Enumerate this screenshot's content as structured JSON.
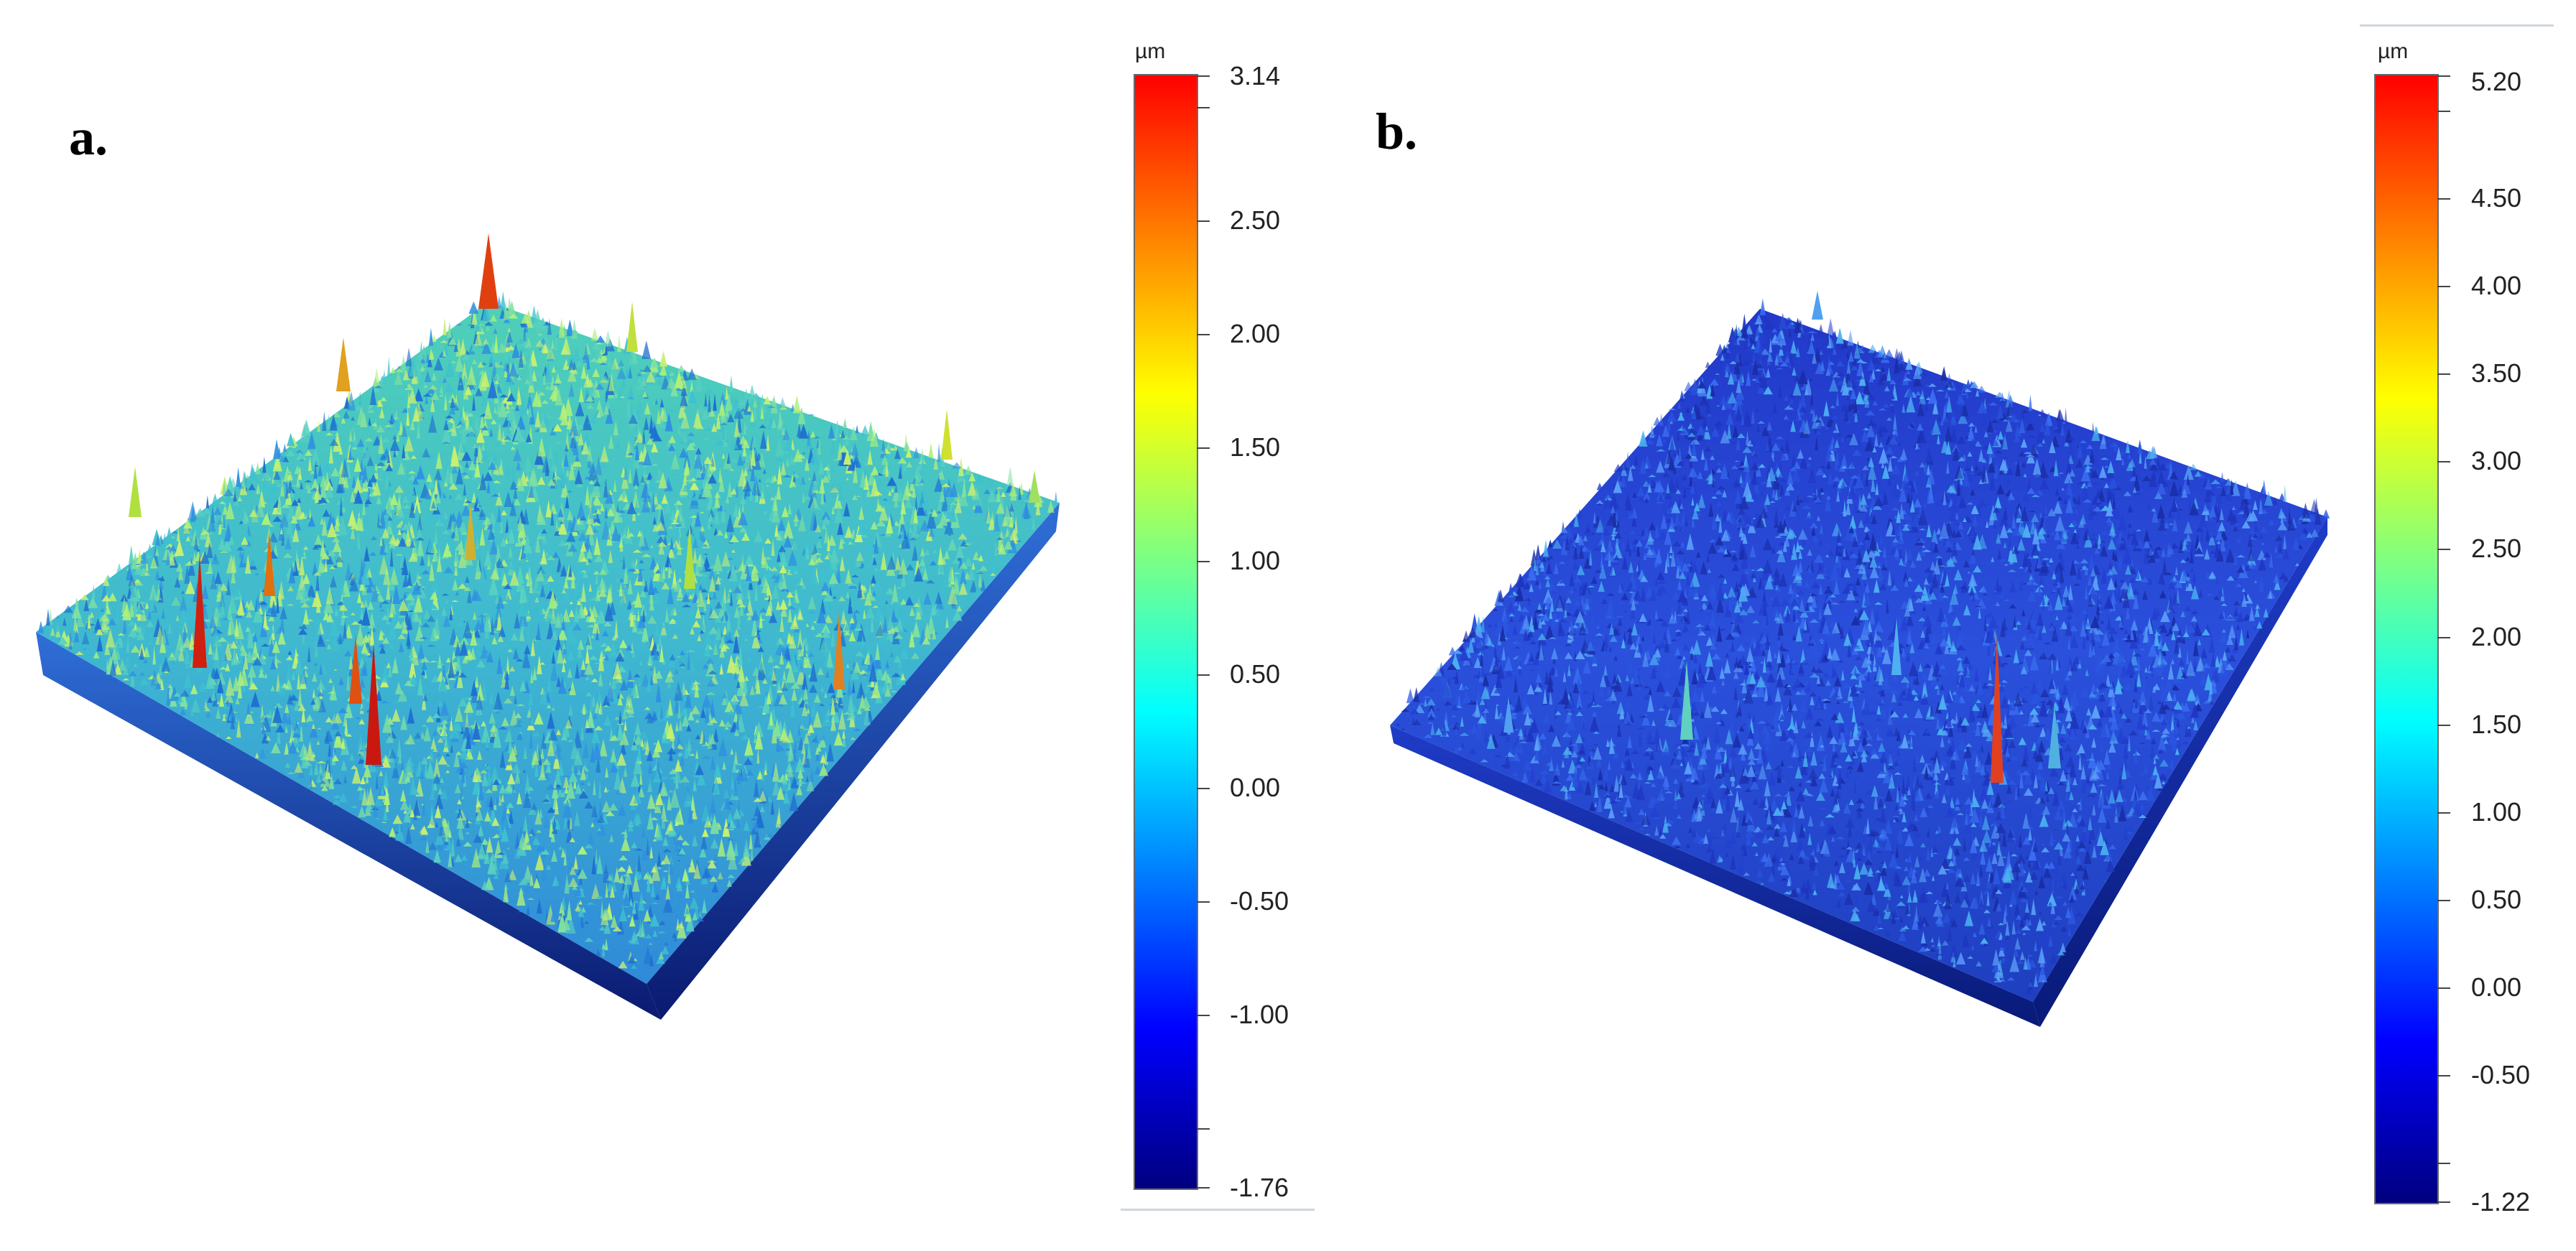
{
  "panels": [
    {
      "label": "a.",
      "colorbar": {
        "unit": "µm",
        "max_label": "3.14",
        "min_label": "-1.76",
        "ticks": [
          "2.50",
          "2.00",
          "1.50",
          "1.00",
          "0.50",
          "0.00",
          "-0.50",
          "-1.00"
        ],
        "max": 3.14,
        "min": -1.76,
        "tick_values": [
          2.5,
          2.0,
          1.5,
          1.0,
          0.5,
          0.0,
          -0.5,
          -1.0
        ],
        "minor_tick_values": [
          3.0,
          -1.5
        ]
      },
      "dominant_color": "#3fb8c8"
    },
    {
      "label": "b.",
      "colorbar": {
        "unit": "µm",
        "max_label": "5.20",
        "min_label": "-1.22",
        "ticks": [
          "4.50",
          "4.00",
          "3.50",
          "3.00",
          "2.50",
          "2.00",
          "1.50",
          "1.00",
          "0.50",
          "0.00",
          "-0.50"
        ],
        "max": 5.2,
        "min": -1.22,
        "tick_values": [
          4.5,
          4.0,
          3.5,
          3.0,
          2.5,
          2.0,
          1.5,
          1.0,
          0.5,
          0.0,
          -0.5
        ],
        "minor_tick_values": [
          5.0,
          -1.0
        ]
      },
      "dominant_color": "#2a4fd6"
    }
  ],
  "colormap": [
    "#00007f",
    "#0000ff",
    "#0080ff",
    "#00ffff",
    "#80ff80",
    "#ffff00",
    "#ff8000",
    "#ff0000"
  ]
}
